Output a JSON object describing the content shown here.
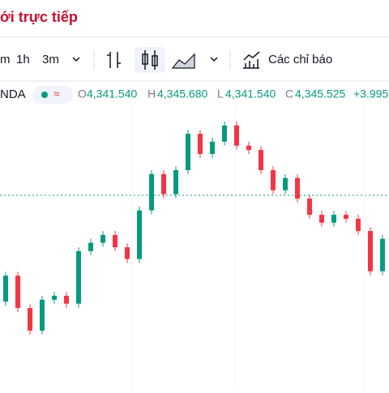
{
  "ui": {
    "title": "ới trực tiếp",
    "toolbar": [
      "m",
      "1h",
      "3m",
      "Các chỉ báo"
    ],
    "legend": {
      "symbol": "NDA",
      "o_label": "O",
      "o_value": "4,341.540",
      "h_label": "H",
      "h_value": "4,345.680",
      "l_label": "L",
      "l_value": "4,341.540",
      "c_label": "C",
      "c_value": "4,345.525",
      "change": "+3.995"
    }
  },
  "chart_data": {
    "type": "candlestick",
    "up_color": "#089981",
    "down_color": "#f23645",
    "grid": true,
    "ylim": [
      4320,
      4372
    ],
    "open": [
      4332.0,
      4337.3,
      4330.7,
      4326.1,
      4332.4,
      4333.2,
      4331.6,
      4342.3,
      4344.0,
      4345.6,
      4343.1,
      4340.7,
      4350.6,
      4358.0,
      4353.9,
      4358.8,
      4366.2,
      4362.1,
      4364.6,
      4367.9,
      4363.8,
      4362.9,
      4358.8,
      4354.7,
      4357.2,
      4353.0,
      4349.7,
      4348.1,
      4349.7,
      4348.9,
      4346.4,
      4338.2
    ],
    "high": [
      4338.1,
      4338.1,
      4331.5,
      4333.2,
      4334.0,
      4334.0,
      4343.1,
      4344.8,
      4346.4,
      4346.4,
      4343.9,
      4351.4,
      4358.8,
      4358.8,
      4359.6,
      4367.0,
      4367.0,
      4365.4,
      4368.7,
      4368.7,
      4364.6,
      4363.7,
      4359.6,
      4358.0,
      4358.0,
      4353.8,
      4350.5,
      4350.5,
      4350.5,
      4349.7,
      4347.2,
      4345.6
    ],
    "low": [
      4331.2,
      4329.9,
      4325.3,
      4325.3,
      4331.6,
      4330.8,
      4330.8,
      4341.5,
      4343.2,
      4342.3,
      4339.9,
      4339.9,
      4349.8,
      4353.1,
      4353.1,
      4358.0,
      4361.3,
      4361.3,
      4363.8,
      4363.0,
      4362.1,
      4358.0,
      4353.9,
      4353.9,
      4352.2,
      4348.9,
      4347.3,
      4347.3,
      4348.1,
      4345.6,
      4337.4,
      4337.4
    ],
    "close": [
      4337.3,
      4330.7,
      4326.1,
      4332.4,
      4333.2,
      4331.6,
      4342.3,
      4344.0,
      4345.6,
      4343.1,
      4340.7,
      4350.6,
      4358.0,
      4353.9,
      4358.8,
      4366.2,
      4362.1,
      4364.6,
      4367.9,
      4363.8,
      4362.9,
      4358.8,
      4354.7,
      4357.2,
      4353.0,
      4349.7,
      4348.1,
      4349.7,
      4348.9,
      4346.4,
      4338.2,
      4344.8
    ]
  }
}
